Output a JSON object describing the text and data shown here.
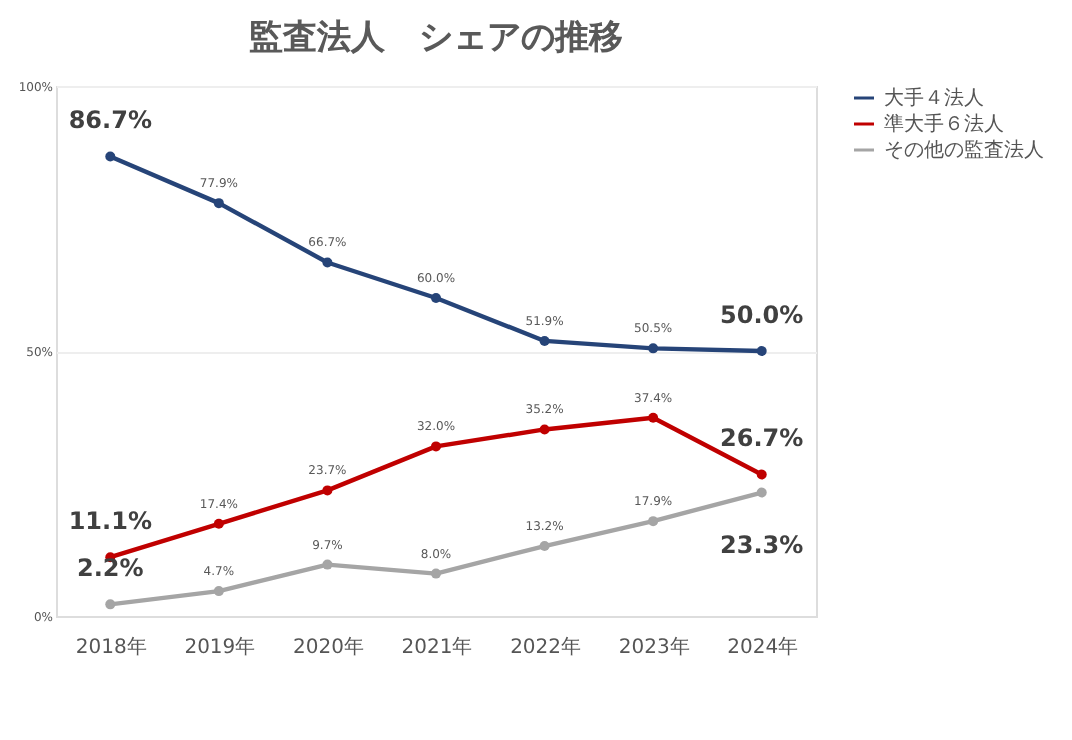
{
  "chart_data": {
    "type": "line",
    "title": "監査法人　シェアの推移",
    "categories": [
      "2018年",
      "2019年",
      "2020年",
      "2021年",
      "2022年",
      "2023年",
      "2024年"
    ],
    "series": [
      {
        "name": "大手４法人",
        "color": "#264478",
        "values": [
          86.7,
          77.9,
          66.7,
          60.0,
          51.9,
          50.5,
          50.0
        ],
        "value_labels": [
          "86.7%",
          "77.9%",
          "66.7%",
          "60.0%",
          "51.9%",
          "50.5%",
          "50.0%"
        ]
      },
      {
        "name": "準大手６法人",
        "color": "#c00000",
        "values": [
          11.1,
          17.4,
          23.7,
          32.0,
          35.2,
          37.4,
          26.7
        ],
        "value_labels": [
          "11.1%",
          "17.4%",
          "23.7%",
          "32.0%",
          "35.2%",
          "37.4%",
          "26.7%"
        ]
      },
      {
        "name": "その他の監査法人",
        "color": "#a5a5a5",
        "values": [
          2.2,
          4.7,
          9.7,
          8.0,
          13.2,
          17.9,
          23.3
        ],
        "value_labels": [
          "2.2%",
          "4.7%",
          "9.7%",
          "8.0%",
          "13.2%",
          "17.9%",
          "23.3%"
        ]
      }
    ],
    "ylim": [
      0,
      100
    ],
    "yticks": [
      {
        "value": 0,
        "label": "0%"
      },
      {
        "value": 50,
        "label": "50%"
      },
      {
        "value": 100,
        "label": "100%"
      }
    ],
    "grid": "y",
    "legend": "right",
    "marker": "circle",
    "line_style": "solid"
  }
}
